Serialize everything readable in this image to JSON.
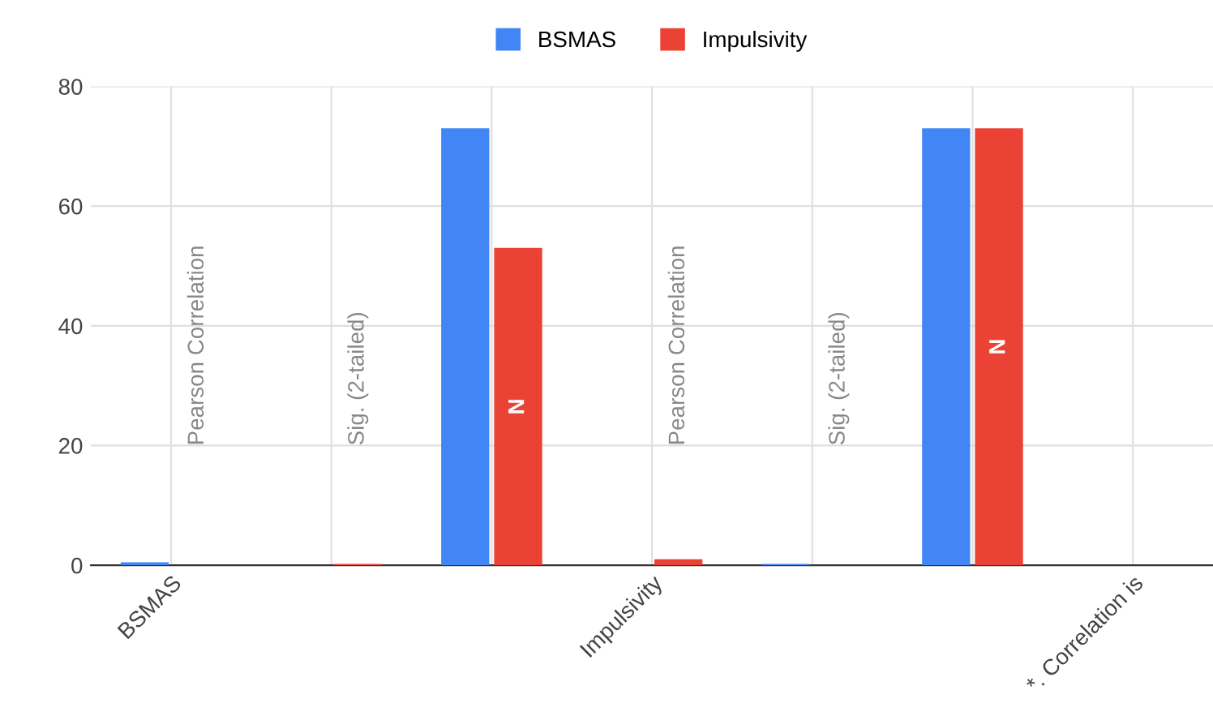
{
  "chart_data": {
    "type": "bar",
    "categories": [
      "BSMAS",
      null,
      null,
      "Impulsivity",
      null,
      null,
      "*. Correlation is"
    ],
    "series": [
      {
        "name": "BSMAS",
        "color": "#4285f4",
        "values": [
          0.5,
          null,
          73,
          null,
          0.2,
          73,
          null
        ]
      },
      {
        "name": "Impulsivity",
        "color": "#ea4335",
        "values": [
          null,
          0.2,
          53,
          1,
          null,
          73,
          null
        ]
      }
    ],
    "annotations": [
      "Pearson Correlation",
      "Sig. (2-tailed)",
      "N",
      "Pearson Correlation",
      "Sig. (2-tailed)",
      "N"
    ],
    "ylim": [
      0,
      80
    ],
    "yticks": [
      0,
      20,
      40,
      60,
      80
    ],
    "grid": true,
    "legend": "top"
  }
}
